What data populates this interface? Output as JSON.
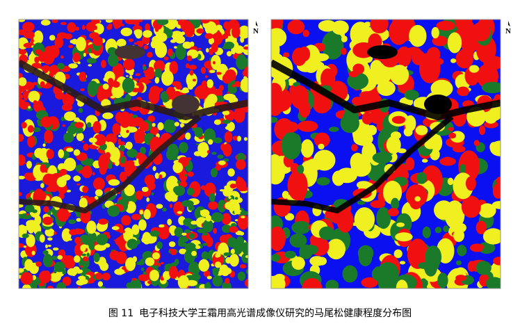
{
  "figure": {
    "north_labels": [
      "N",
      "N"
    ],
    "caption": {
      "label": "图 11",
      "text": "电子科技大学王霜用高光谱成像仪研究的马尾松健康程度分布图"
    }
  }
}
